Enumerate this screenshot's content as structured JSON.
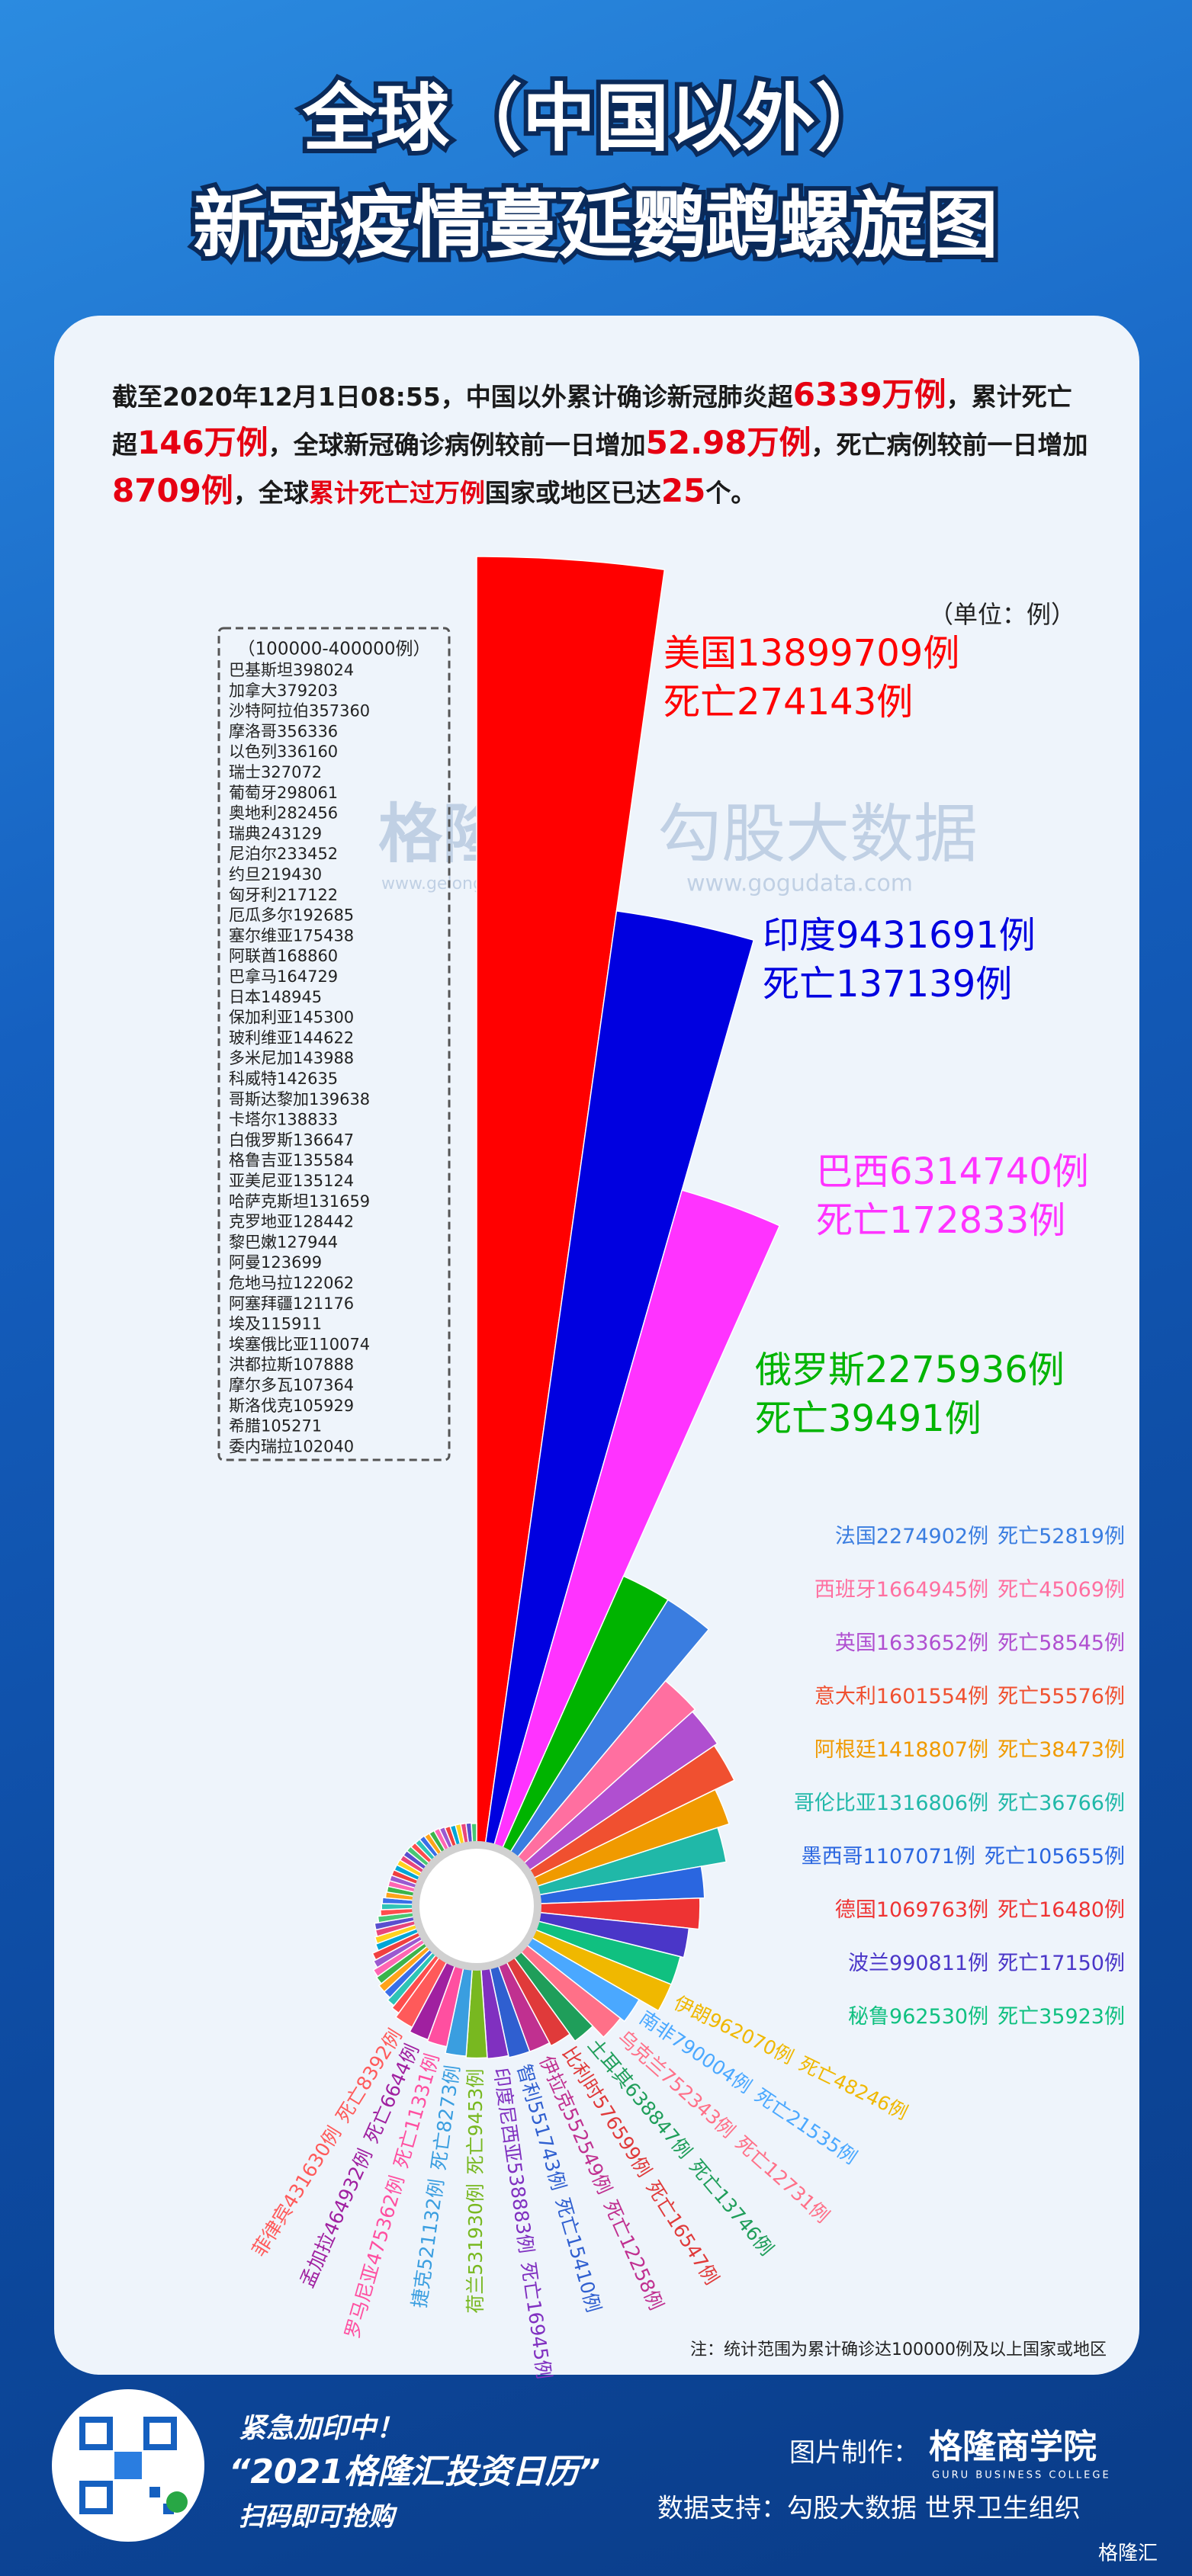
{
  "header": {
    "title_lines": [
      "全球（中国以外）",
      "新冠疫情蔓延鹦鹉螺旋图"
    ]
  },
  "summary": [
    {
      "text": "截至2020年12月1日08:55，中国以外累计确诊新冠肺炎超",
      "style": "plain"
    },
    {
      "text": "6339万例",
      "style": "big"
    },
    {
      "text": "，累计死亡超",
      "style": "plain"
    },
    {
      "text": "146万例",
      "style": "big"
    },
    {
      "text": "，全球新冠确诊病例较前一日增加",
      "style": "plain"
    },
    {
      "text": "52.98万例",
      "style": "big"
    },
    {
      "text": "，死亡病例较前一日增加",
      "style": "plain"
    },
    {
      "text": "8709例",
      "style": "big"
    },
    {
      "text": "，全球",
      "style": "plain"
    },
    {
      "text": "累计死亡过万例",
      "style": "red"
    },
    {
      "text": "国家或地区已达",
      "style": "plain"
    },
    {
      "text": "25",
      "style": "big"
    },
    {
      "text": "个。",
      "style": "plain"
    }
  ],
  "unit": "（单位：例）",
  "watermark": {
    "left": "格隆汇",
    "left_url": "www.gelonghui.com",
    "right": "勾股大数据",
    "right_url": "www.gogudata.com"
  },
  "note": "注：统计范围为累计确诊达100000例及以上国家或地区",
  "chart_data": {
    "type": "nautilus",
    "labeled": {
      "values": [
        13899709,
        9431691,
        6314740,
        2275936,
        2274902,
        1664945,
        1633652,
        1601554,
        1418807,
        1316806,
        1107071,
        1069763,
        990811,
        962530,
        962070,
        790004,
        752343,
        638847,
        576599,
        552549,
        551743,
        538883,
        531930,
        521132,
        475362,
        464932,
        431630
      ],
      "value_labels": [
        "美国13899709例",
        "印度9431691例",
        "巴西6314740例",
        "俄罗斯2275936例",
        "法国2274902例",
        "西班牙1664945例",
        "英国1633652例",
        "意大利1601554例",
        "阿根廷1418807例",
        "哥伦比亚1316806例",
        "墨西哥1107071例",
        "德国1069763例",
        "波兰990811例",
        "秘鲁962530例",
        "伊朗962070例",
        "南非790004例",
        "乌克兰752343例",
        "土耳其638847例",
        "比利时576599例",
        "伊拉克552549例",
        "智利551743例",
        "印度尼西亚538883例",
        "荷兰531930例",
        "捷克521132例",
        "罗马尼亚475362例",
        "孟加拉464932例",
        "菲律宾431630例"
      ],
      "death_labels": [
        "死亡274143例",
        "死亡137139例",
        "死亡172833例",
        "死亡39491例",
        "死亡52819例",
        "死亡45069例",
        "死亡58545例",
        "死亡55576例",
        "死亡38473例",
        "死亡36766例",
        "死亡105655例",
        "死亡16480例",
        "死亡17150例",
        "死亡35923例",
        "死亡48246例",
        "死亡21535例",
        "死亡12731例",
        "死亡13746例",
        "死亡16547例",
        "死亡12258例",
        "死亡15410例",
        "死亡16945例",
        "死亡9453例",
        "死亡8273例",
        "死亡11331例",
        "死亡6644例",
        "死亡8392例"
      ],
      "colors": [
        "#ff0000",
        "#0000e0",
        "#ff33ff",
        "#00b400",
        "#3a7de0",
        "#ff6fa0",
        "#b04fd0",
        "#f05030",
        "#f09a00",
        "#20b8a8",
        "#2a66e0",
        "#ee3333",
        "#4a36c8",
        "#10c080",
        "#f0b800",
        "#4aa8ff",
        "#ff7088",
        "#1f9e5a",
        "#e03a3a",
        "#c03090",
        "#2f5fd0",
        "#8030c0",
        "#78b820",
        "#3a9ee0",
        "#ff4fa0",
        "#a020a0",
        "#ff5a5a"
      ]
    },
    "others": {
      "title": "（100000-400000例）",
      "values": [
        398024,
        379203,
        357360,
        356336,
        336160,
        327072,
        298061,
        282456,
        243129,
        233452,
        219430,
        217122,
        192685,
        175438,
        168860,
        164729,
        148945,
        145300,
        144622,
        143988,
        142635,
        139638,
        138833,
        136647,
        135584,
        135124,
        131659,
        128442,
        127944,
        123699,
        122062,
        121176,
        115911,
        110074,
        107888,
        107364,
        105929,
        105271,
        102040
      ],
      "value_labels": [
        "巴基斯坦398024",
        "加拿大379203",
        "沙特阿拉伯357360",
        "摩洛哥356336",
        "以色列336160",
        "瑞士327072",
        "葡萄牙298061",
        "奥地利282456",
        "瑞典243129",
        "尼泊尔233452",
        "约旦219430",
        "匈牙利217122",
        "厄瓜多尔192685",
        "塞尔维亚175438",
        "阿联酋168860",
        "巴拿马164729",
        "日本148945",
        "保加利亚145300",
        "玻利维亚144622",
        "多米尼加143988",
        "科威特142635",
        "哥斯达黎加139638",
        "卡塔尔138833",
        "白俄罗斯136647",
        "格鲁吉亚135584",
        "亚美尼亚135124",
        "哈萨克斯坦131659",
        "克罗地亚128442",
        "黎巴嫩127944",
        "阿曼123699",
        "危地马拉122062",
        "阿塞拜疆121176",
        "埃及115911",
        "埃塞俄比亚110074",
        "洪都拉斯107888",
        "摩尔多瓦107364",
        "斯洛伐克105929",
        "希腊105271",
        "委内瑞拉102040"
      ],
      "colors": [
        "#ff4d4d",
        "#2ec4b6",
        "#3a6ee8",
        "#ffa41b",
        "#3cb44b",
        "#ff66b3",
        "#9b59d0",
        "#f04040",
        "#00a6d6",
        "#ffd21f",
        "#e8467c",
        "#5a4fcf",
        "#48c774",
        "#ff4d4d",
        "#2ec4b6",
        "#3a6ee8",
        "#ffa41b",
        "#3cb44b",
        "#ff66b3",
        "#9b59d0",
        "#f04040",
        "#00a6d6",
        "#ffd21f",
        "#e8467c",
        "#5a4fcf",
        "#48c774",
        "#ff4d4d",
        "#2ec4b6",
        "#3a6ee8",
        "#ffa41b",
        "#3cb44b",
        "#ff66b3",
        "#9b59d0",
        "#f04040",
        "#00a6d6",
        "#ffd21f",
        "#e8467c",
        "#5a4fcf",
        "#48c774"
      ]
    }
  },
  "footer": {
    "promo1": "紧急加印中！",
    "promo2": "“2021格隆汇投资日历”",
    "promo3": "扫码即可抢购",
    "made_by_label": "图片制作：",
    "made_by": "格隆商学院",
    "made_by_en": "GURU BUSINESS COLLEGE",
    "source": "数据支持：勾股大数据 世界卫生组织",
    "logo": "格隆汇"
  }
}
